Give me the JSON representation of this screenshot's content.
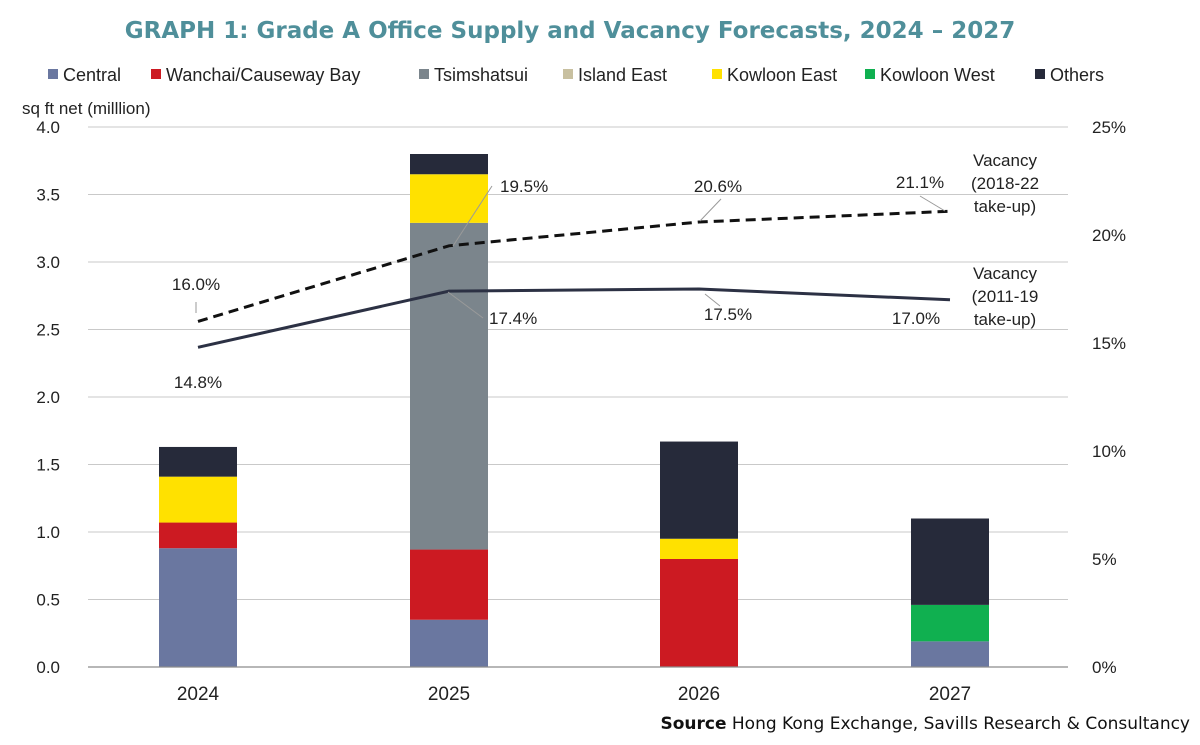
{
  "title": "GRAPH 1: Grade A Office Supply and Vacancy Forecasts, 2024 – 2027",
  "source": {
    "label": "Source",
    "text": "Hong Kong Exchange, Savills Research & Consultancy"
  },
  "chart_data": {
    "type": "bar",
    "stacked": true,
    "categories": [
      "2024",
      "2025",
      "2026",
      "2027"
    ],
    "ylabel": "sq ft net (milllion)",
    "ylim": [
      0,
      4.0
    ],
    "yticks": [
      "0.0",
      "0.5",
      "1.0",
      "1.5",
      "2.0",
      "2.5",
      "3.0",
      "3.5",
      "4.0"
    ],
    "y2lim": [
      0,
      25
    ],
    "y2ticks": [
      "0%",
      "5%",
      "10%",
      "15%",
      "20%",
      "25%"
    ],
    "grid": true,
    "legend_position": "top",
    "series": [
      {
        "name": "Central",
        "color": "#6a77a0",
        "values": [
          0.88,
          0.35,
          0.0,
          0.19
        ]
      },
      {
        "name": "Wanchai/Causeway Bay",
        "color": "#cc1a22",
        "values": [
          0.19,
          0.52,
          0.8,
          0.0
        ]
      },
      {
        "name": "Tsimshatsui",
        "color": "#7b858c",
        "values": [
          0.0,
          2.42,
          0.0,
          0.0
        ]
      },
      {
        "name": "Island East",
        "color": "#c8c0a0",
        "values": [
          0.0,
          0.0,
          0.0,
          0.0
        ]
      },
      {
        "name": "Kowloon East",
        "color": "#ffe100",
        "values": [
          0.34,
          0.36,
          0.15,
          0.0
        ]
      },
      {
        "name": "Kowloon West",
        "color": "#10b050",
        "values": [
          0.0,
          0.0,
          0.0,
          0.27
        ]
      },
      {
        "name": "Others",
        "color": "#262a3a",
        "values": [
          0.22,
          0.15,
          0.72,
          0.64
        ]
      }
    ],
    "lines": [
      {
        "name": "Vacancy (2018-22 take-up)",
        "label_lines": [
          "Vacancy",
          "(2018-22",
          "take-up)"
        ],
        "style": "dashed",
        "color": "#111111",
        "axis": "right",
        "values": [
          16.0,
          19.5,
          20.6,
          21.1
        ],
        "labels": [
          "16.0%",
          "19.5%",
          "20.6%",
          "21.1%"
        ]
      },
      {
        "name": "Vacancy (2011-19 take-up)",
        "label_lines": [
          "Vacancy",
          "(2011-19",
          "take-up)"
        ],
        "style": "solid",
        "color": "#2c3144",
        "axis": "right",
        "values": [
          14.8,
          17.4,
          17.5,
          17.0
        ],
        "labels": [
          "14.8%",
          "17.4%",
          "17.5%",
          "17.0%"
        ]
      }
    ]
  }
}
